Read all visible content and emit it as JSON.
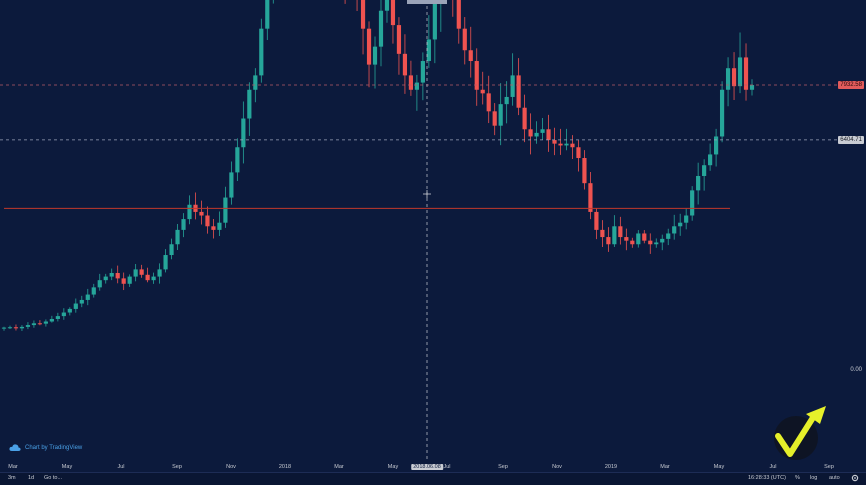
{
  "chart_data": {
    "type": "candlestick",
    "x_tick_labels": [
      "Mar",
      "May",
      "Jul",
      "Sep",
      "Nov",
      "2018",
      "Mar",
      "May",
      "2018.06.08",
      "Jul",
      "Sep",
      "Nov",
      "2019",
      "Mar",
      "May",
      "Jul",
      "Sep"
    ],
    "cursor_date_label": "2018.06.08",
    "price_labels": {
      "upper": "7932.58",
      "middle": "6404.71",
      "zero": "0.00"
    },
    "series_close": [
      1180,
      1190,
      1160,
      1200,
      1250,
      1300,
      1290,
      1350,
      1420,
      1500,
      1600,
      1700,
      1850,
      1950,
      2100,
      2300,
      2500,
      2600,
      2700,
      2550,
      2400,
      2600,
      2800,
      2650,
      2500,
      2600,
      2800,
      3200,
      3500,
      3900,
      4200,
      4600,
      4400,
      4300,
      4000,
      3900,
      4100,
      4800,
      5500,
      6200,
      7000,
      7800,
      8200,
      9500,
      10500,
      12000,
      13500,
      14200,
      15500,
      17000,
      18500,
      19000,
      18200,
      17000,
      14500,
      13800,
      12000,
      11000,
      11500,
      10800,
      9500,
      8500,
      9000,
      10000,
      11000,
      9600,
      8800,
      8200,
      7800,
      8000,
      8600,
      9200,
      10200,
      10800,
      11500,
      10500,
      9500,
      8900,
      8600,
      7800,
      7700,
      7200,
      6800,
      7400,
      7600,
      8200,
      7300,
      6700,
      6500,
      6600,
      6700,
      6400,
      6300,
      6250,
      6300,
      6200,
      5900,
      5200,
      4400,
      3900,
      3700,
      3500,
      4000,
      3700,
      3600,
      3500,
      3800,
      3600,
      3500,
      3550,
      3650,
      3800,
      4000,
      4100,
      4300,
      5000,
      5400,
      5700,
      6000,
      6500,
      7800,
      8400,
      7900,
      8700,
      7800,
      7932
    ],
    "horizontal_lines": [
      {
        "price": 7932.58,
        "style": "dashed"
      },
      {
        "price": 6404.71,
        "style": "dashed"
      },
      {
        "price": 4500,
        "style": "solid"
      }
    ],
    "cursor": {
      "date": "2018.06.08"
    },
    "colors": {
      "up": "#26a69a",
      "down": "#ef5350",
      "background": "#0c1a3c",
      "support_line": "#c0392b"
    }
  },
  "toolbar": {
    "range_3m": "3m",
    "range_1d": "1d",
    "goto": "Go to...",
    "time": "16:28:33 (UTC)",
    "percent": "%",
    "log": "log",
    "auto": "auto"
  },
  "brand": {
    "text": "Chart by TradingView"
  },
  "icons": {
    "brand": "tradingview-cloud-icon",
    "settings": "gear-icon",
    "logo": "checkmark-logo"
  }
}
